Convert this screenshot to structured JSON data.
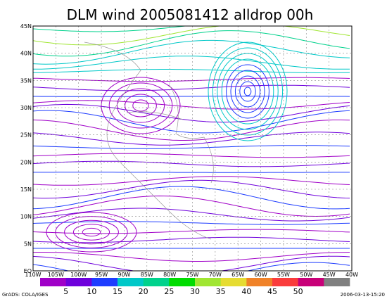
{
  "title": "DLM wind 2005081412 alldrop 00h",
  "map": {
    "lon_labels": [
      "110W",
      "105W",
      "100W",
      "95W",
      "90W",
      "85W",
      "80W",
      "75W",
      "70W",
      "65W",
      "60W",
      "55W",
      "50W",
      "45W",
      "40W"
    ],
    "lat_labels": [
      "45N",
      "40N",
      "35N",
      "30N",
      "25N",
      "20N",
      "15N",
      "10N",
      "5N",
      "EQ"
    ]
  },
  "colorbar": {
    "labels": [
      "5",
      "10",
      "15",
      "20",
      "25",
      "30",
      "35",
      "40",
      "45",
      "50"
    ],
    "colors": [
      "#a000c8",
      "#6e00dc",
      "#1e3cff",
      "#00c8c8",
      "#00d28c",
      "#00dc00",
      "#a0e632",
      "#e6dc32",
      "#f08228",
      "#fa3c3c",
      "#c80078",
      "#808080"
    ]
  },
  "footer": {
    "left": "GrADS: COLA/IGES",
    "right": "2006-03-13-15:20"
  }
}
